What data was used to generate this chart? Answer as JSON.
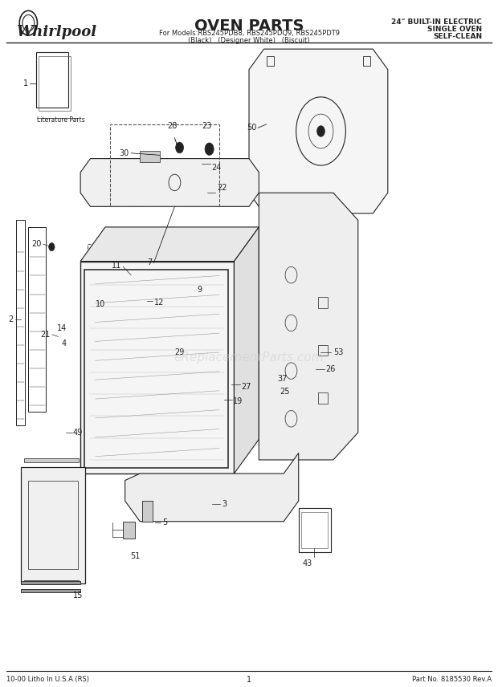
{
  "title": "OVEN PARTS",
  "subtitle_line1": "For Models:RBS245PDB8, RBS245PDQ9, RBS245PDT9",
  "subtitle_line2": "(Black)   (Designer White)   (Biscuit)",
  "brand": "Whirlpool",
  "top_right_line1": "24\" BUILT-IN ELECTRIC",
  "top_right_line2": "SINGLE OVEN",
  "top_right_line3": "SELF-CLEAN",
  "bottom_left": "10-00 Litho In U.S.A.(RS)",
  "bottom_center": "1",
  "bottom_right": "Part No. 8185530 Rev.A",
  "bg_color": "#ffffff",
  "line_color": "#222222",
  "watermark": "eReplacementParts.com"
}
